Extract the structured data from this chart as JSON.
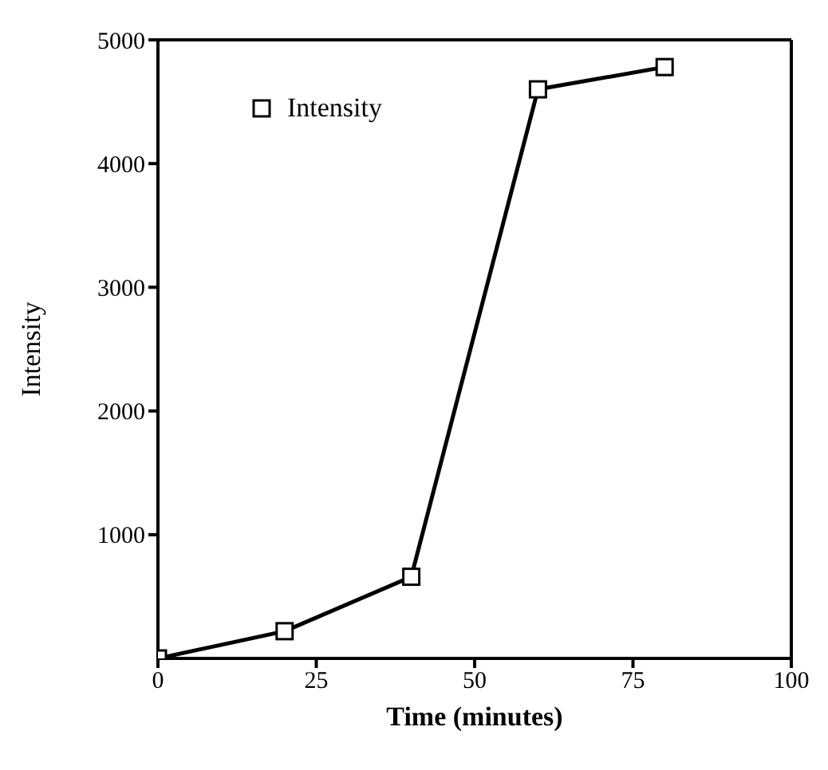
{
  "chart_data": {
    "type": "line",
    "xlabel": "Time (minutes)",
    "ylabel": "Intensity",
    "x": [
      0,
      20,
      40,
      60,
      80
    ],
    "series": [
      {
        "name": "Intensity",
        "color": "#000000",
        "values": [
          0,
          220,
          660,
          4600,
          4780
        ]
      }
    ],
    "xlim": [
      0,
      100
    ],
    "xticks": [
      0,
      25,
      50,
      75,
      100
    ],
    "ylim": [
      0,
      5000
    ],
    "yticks": [
      1000,
      2000,
      3000,
      4000,
      5000
    ],
    "marker": "square",
    "line_style": "solid",
    "legend": "top left",
    "grid": false
  }
}
